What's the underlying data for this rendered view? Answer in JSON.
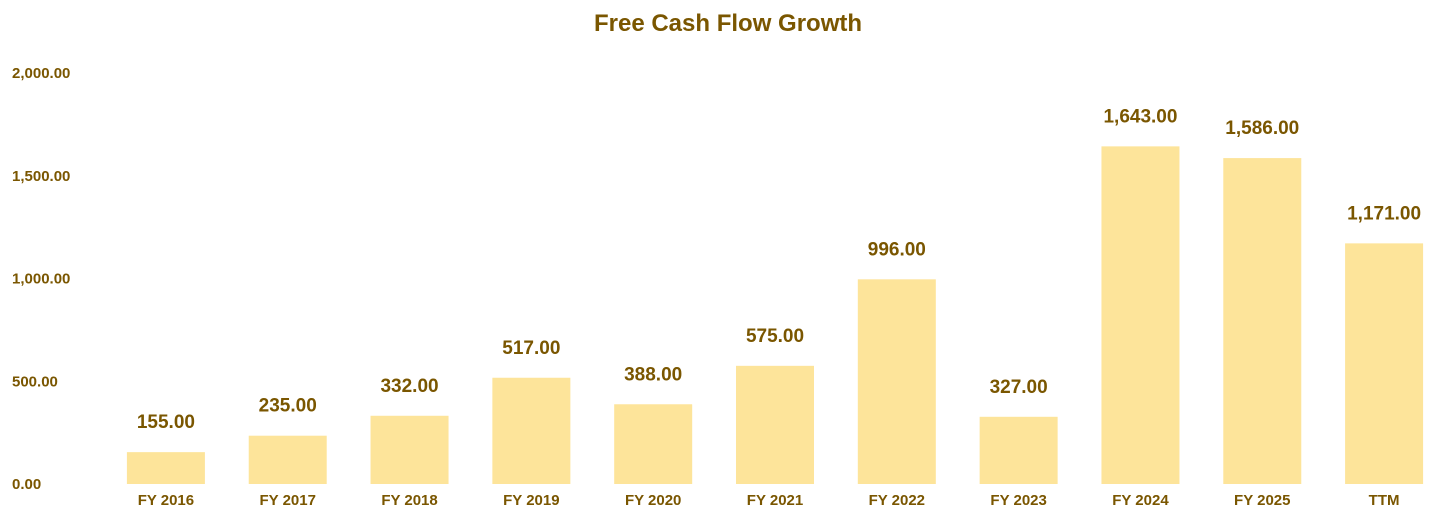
{
  "chart_data": {
    "type": "bar",
    "title": "Free Cash Flow Growth",
    "xlabel": "",
    "ylabel": "",
    "categories": [
      "FY 2016",
      "FY 2017",
      "FY 2018",
      "FY 2019",
      "FY 2020",
      "FY 2021",
      "FY 2022",
      "FY 2023",
      "FY 2024",
      "FY 2025",
      "TTM"
    ],
    "values": [
      155,
      235,
      332,
      517,
      388,
      575,
      996,
      327,
      1643,
      1586,
      1171
    ],
    "data_labels": [
      "155.00",
      "235.00",
      "332.00",
      "517.00",
      "388.00",
      "575.00",
      "996.00",
      "327.00",
      "1,643.00",
      "1,586.00",
      "1,171.00"
    ],
    "ylim": [
      0,
      2000
    ],
    "y_ticks": [
      0,
      500,
      1000,
      1500,
      2000
    ],
    "y_tick_labels": [
      "0.00",
      "500.00",
      "1,000.00",
      "1,500.00",
      "2,000.00"
    ],
    "grid": false,
    "legend": "none",
    "colors": {
      "bar": "#fde49a",
      "text": "#7a5600"
    }
  }
}
